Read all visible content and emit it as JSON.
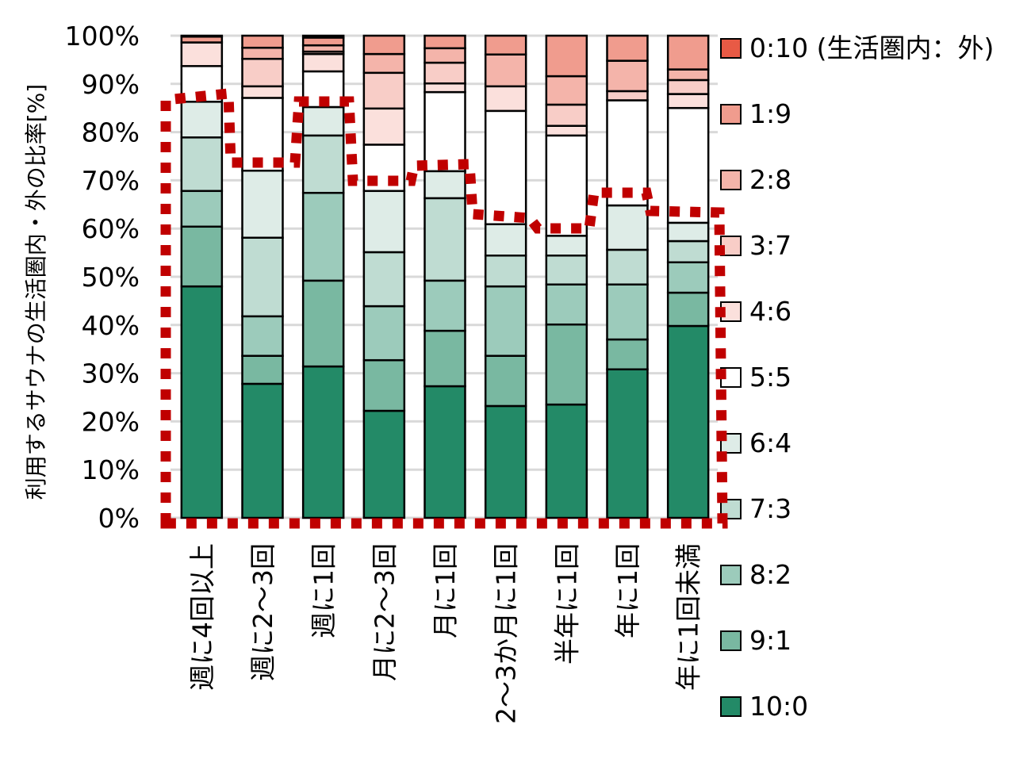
{
  "chart_data": {
    "type": "bar",
    "stacked": true,
    "title": "",
    "xlabel": "",
    "ylabel": "利用するサウナの生活圏内・外の比率[%]",
    "ylim": [
      0,
      100
    ],
    "yticks": [
      "0%",
      "10%",
      "20%",
      "30%",
      "40%",
      "50%",
      "60%",
      "70%",
      "80%",
      "90%",
      "100%"
    ],
    "grid": true,
    "legend_position": "right",
    "categories": [
      "週に4回以上",
      "週に2～3回",
      "週に1回",
      "月に2～3回",
      "月に1回",
      "2～3か月に1回",
      "半年に1回",
      "年に1回",
      "年に1回未満"
    ],
    "series": [
      {
        "name": "10:0",
        "color": "#238a67",
        "values": [
          48.0,
          27.8,
          31.4,
          22.2,
          27.3,
          23.2,
          23.5,
          30.8,
          39.8
        ]
      },
      {
        "name": "9:1",
        "color": "#79b8a1",
        "values": [
          12.4,
          5.8,
          17.8,
          10.5,
          11.5,
          10.4,
          16.6,
          6.2,
          6.9
        ]
      },
      {
        "name": "8:2",
        "color": "#9ccbbb",
        "values": [
          7.4,
          8.2,
          18.2,
          11.2,
          10.4,
          14.4,
          8.3,
          11.4,
          6.3
        ]
      },
      {
        "name": "7:3",
        "color": "#bfdcd2",
        "values": [
          11.1,
          16.3,
          11.9,
          11.2,
          17.1,
          6.4,
          6.0,
          7.2,
          4.4
        ]
      },
      {
        "name": "6:4",
        "color": "#deece7",
        "values": [
          7.4,
          13.9,
          5.9,
          12.7,
          5.6,
          6.5,
          4.1,
          9.2,
          3.8
        ]
      },
      {
        "name": "5:5",
        "color": "#ffffff",
        "values": [
          7.4,
          15.1,
          7.4,
          9.6,
          16.4,
          23.5,
          20.8,
          21.8,
          23.8
        ]
      },
      {
        "name": "4:6",
        "color": "#fbe0dc",
        "values": [
          4.9,
          2.4,
          3.6,
          7.5,
          1.8,
          5.1,
          2.0,
          0.0,
          2.9
        ]
      },
      {
        "name": "3:7",
        "color": "#f8cdc7",
        "values": [
          0.0,
          5.7,
          0.5,
          7.4,
          4.3,
          0.0,
          4.4,
          1.9,
          2.9
        ]
      },
      {
        "name": "2:8",
        "color": "#f4b4aa",
        "values": [
          0.0,
          2.3,
          1.3,
          3.9,
          3.0,
          6.6,
          5.9,
          6.3,
          2.2
        ]
      },
      {
        "name": "1:9",
        "color": "#f09c8e",
        "values": [
          1.2,
          2.5,
          1.6,
          3.8,
          2.6,
          3.9,
          8.4,
          5.2,
          7.0
        ]
      },
      {
        "name": "0:10 (生活圏内：外)",
        "color": "#e85a45",
        "values": [
          0,
          0,
          0,
          0,
          0,
          0,
          0,
          0,
          0
        ]
      }
    ],
    "annotation": {
      "type": "dotted-outline",
      "color": "#c00000"
    }
  }
}
